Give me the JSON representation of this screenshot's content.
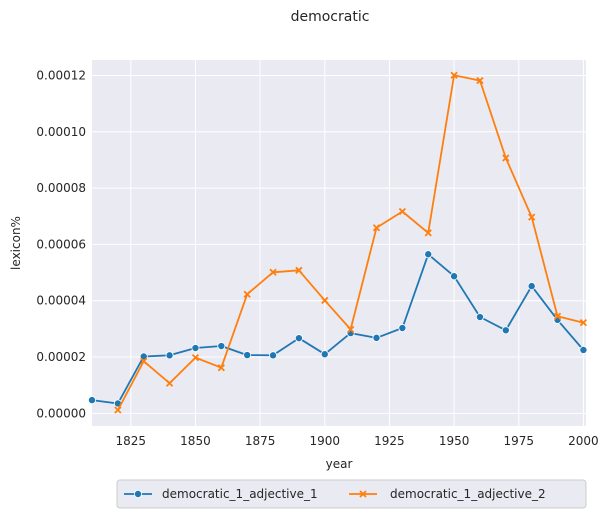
{
  "chart_data": {
    "type": "line",
    "title": "democratic",
    "xlabel": "year",
    "ylabel": "lexicon%",
    "xlim": [
      1810,
      2001
    ],
    "ylim": [
      -4.5e-06,
      0.0001255
    ],
    "xticks": [
      1825,
      1850,
      1875,
      1900,
      1925,
      1950,
      1975,
      2000
    ],
    "xtick_labels": [
      "1825",
      "1850",
      "1875",
      "1900",
      "1925",
      "1950",
      "1975",
      "2000"
    ],
    "yticks": [
      0,
      2e-05,
      4e-05,
      6e-05,
      8e-05,
      0.0001,
      0.00012
    ],
    "ytick_labels": [
      "0.00000",
      "0.00002",
      "0.00004",
      "0.00006",
      "0.00008",
      "0.00010",
      "0.00012"
    ],
    "grid": true,
    "legend_position": "bottom-center",
    "background": "#eaeaf2",
    "series": [
      {
        "name": "democratic_1_adjective_1",
        "color": "#1f77b4",
        "marker": "circle",
        "x": [
          1810,
          1820,
          1830,
          1840,
          1850,
          1860,
          1870,
          1880,
          1890,
          1900,
          1910,
          1920,
          1930,
          1940,
          1950,
          1960,
          1970,
          1980,
          1990,
          2000
        ],
        "y": [
          4.7e-06,
          3.5e-06,
          2.02e-05,
          2.06e-05,
          2.32e-05,
          2.39e-05,
          2.07e-05,
          2.06e-05,
          2.67e-05,
          2.1e-05,
          2.85e-05,
          2.68e-05,
          3.03e-05,
          5.65e-05,
          4.87e-05,
          3.42e-05,
          2.95e-05,
          4.52e-05,
          3.32e-05,
          2.25e-05
        ]
      },
      {
        "name": "democratic_1_adjective_2",
        "color": "#ff7f0e",
        "marker": "x",
        "x": [
          1820,
          1830,
          1840,
          1850,
          1860,
          1870,
          1880,
          1890,
          1900,
          1910,
          1920,
          1930,
          1940,
          1950,
          1960,
          1970,
          1980,
          1990,
          2000
        ],
        "y": [
          1.2e-06,
          1.85e-05,
          1.07e-05,
          1.98e-05,
          1.62e-05,
          4.23e-05,
          5.01e-05,
          5.08e-05,
          4.01e-05,
          2.98e-05,
          6.59e-05,
          7.17e-05,
          6.41e-05,
          0.0001201,
          0.0001182,
          9.07e-05,
          6.97e-05,
          3.45e-05,
          3.22e-05
        ]
      }
    ]
  }
}
